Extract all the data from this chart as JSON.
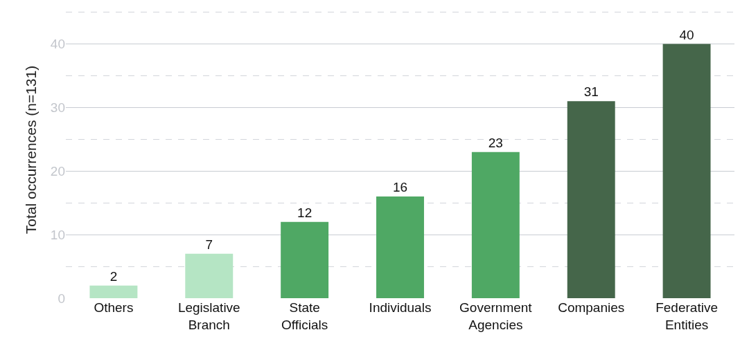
{
  "chart_data": {
    "type": "bar",
    "ylabel": "Total occurrences (n=131)",
    "categories": [
      "Others",
      "Legislative Branch",
      "State Officials",
      "Individuals",
      "Government Agencies",
      "Companies",
      "Federative Entities"
    ],
    "values": [
      2,
      7,
      12,
      16,
      23,
      31,
      40
    ],
    "colors": [
      "#b5e5c4",
      "#b5e5c4",
      "#4fa864",
      "#4fa864",
      "#4fa864",
      "#45664a",
      "#45664a"
    ],
    "ylim": [
      0,
      46.7
    ],
    "yticks": [
      0,
      10,
      20,
      30,
      40,
      {
        "value": 5,
        "label": null
      },
      {
        "value": 15,
        "label": null
      },
      {
        "value": 25,
        "label": null
      },
      {
        "value": 35,
        "label": null
      },
      {
        "value": 45,
        "label": null
      }
    ],
    "grid": "y",
    "data_labels": true
  }
}
